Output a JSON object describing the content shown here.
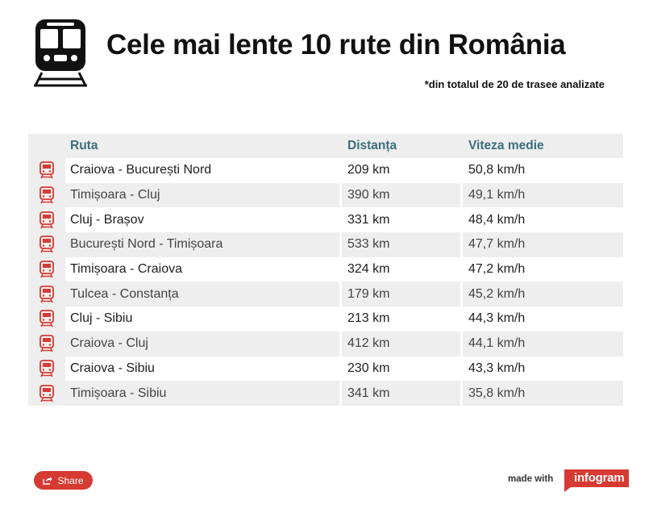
{
  "title": "Cele mai lente 10 rute din România",
  "subtitle": "*din totalul de 20 de trasee analizate",
  "header_icon": "train-front-icon",
  "row_icon": "train-icon",
  "colors": {
    "accent": "#d63a32",
    "header_text": "#3a6e7e",
    "stripe": "#eeeeee"
  },
  "chart_data": {
    "type": "table",
    "columns": [
      "Ruta",
      "Distanța",
      "Viteza medie"
    ],
    "rows": [
      [
        "Craiova - București Nord",
        "209 km",
        "50,8 km/h"
      ],
      [
        "Timișoara - Cluj",
        "390 km",
        "49,1 km/h"
      ],
      [
        "Cluj - Brașov",
        "331 km",
        "48,4 km/h"
      ],
      [
        "București Nord - Timișoara",
        "533 km",
        "47,7 km/h"
      ],
      [
        "Timișoara - Craiova",
        "324 km",
        "47,2 km/h"
      ],
      [
        "Tulcea - Constanța",
        "179 km",
        "45,2 km/h"
      ],
      [
        "Cluj - Sibiu",
        "213 km",
        "44,3 km/h"
      ],
      [
        "Craiova - Cluj",
        "412 km",
        "44,1 km/h"
      ],
      [
        "Craiova - Sibiu",
        "230 km",
        "43,3 km/h"
      ],
      [
        "Timișoara - Sibiu",
        "341 km",
        "35,8 km/h"
      ]
    ]
  },
  "footer": {
    "share_label": "Share",
    "share_icon": "share-icon",
    "made_with": "made with",
    "brand": "infogram"
  }
}
